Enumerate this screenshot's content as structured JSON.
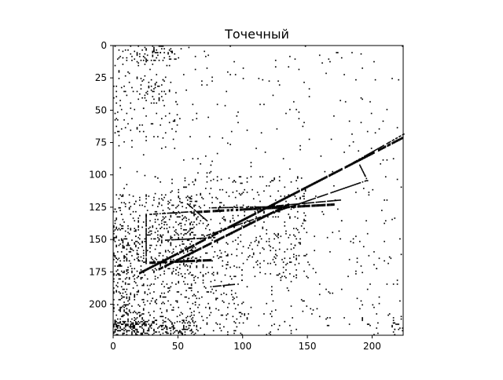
{
  "chart_data": {
    "type": "heatmap",
    "title": "Точечный",
    "xlabel": "",
    "ylabel": "",
    "x_range": [
      0,
      224
    ],
    "y_range": [
      0,
      224
    ],
    "y_inverted": true,
    "grid": false,
    "colors": {
      "ink": "#000000",
      "background": "#ffffff"
    },
    "x_ticks": [
      {
        "value": 0,
        "label": "0"
      },
      {
        "value": 50,
        "label": "50"
      },
      {
        "value": 100,
        "label": "100"
      },
      {
        "value": 150,
        "label": "150"
      },
      {
        "value": 200,
        "label": "200"
      }
    ],
    "y_ticks": [
      {
        "value": 0,
        "label": "0"
      },
      {
        "value": 25,
        "label": "25"
      },
      {
        "value": 50,
        "label": "50"
      },
      {
        "value": 75,
        "label": "75"
      },
      {
        "value": 100,
        "label": "100"
      },
      {
        "value": 125,
        "label": "125"
      },
      {
        "value": 150,
        "label": "150"
      },
      {
        "value": 175,
        "label": "175"
      },
      {
        "value": 200,
        "label": "200"
      }
    ],
    "lines": [
      {
        "from": [
          20,
          175
        ],
        "to": [
          224,
          70
        ],
        "width": 2
      },
      {
        "from": [
          35,
          172
        ],
        "to": [
          135,
          122
        ],
        "width": 2
      },
      {
        "from": [
          28,
          130
        ],
        "to": [
          60,
          128
        ],
        "width": 1
      },
      {
        "from": [
          60,
          128
        ],
        "to": [
          170,
          122
        ],
        "width": 2
      },
      {
        "from": [
          120,
          124
        ],
        "to": [
          175,
          119
        ],
        "width": 1
      },
      {
        "from": [
          70,
          147
        ],
        "to": [
          195,
          104
        ],
        "width": 1
      },
      {
        "from": [
          28,
          167
        ],
        "to": [
          75,
          165
        ],
        "width": 2
      },
      {
        "from": [
          190,
          92
        ],
        "to": [
          196,
          104
        ],
        "width": 1
      },
      {
        "from": [
          57,
          122
        ],
        "to": [
          72,
          135
        ],
        "width": 1
      },
      {
        "from": [
          25,
          130
        ],
        "to": [
          25,
          168
        ],
        "width": 1
      },
      {
        "from": [
          40,
          150
        ],
        "to": [
          78,
          148
        ],
        "width": 1
      },
      {
        "from": [
          75,
          186
        ],
        "to": [
          95,
          184
        ],
        "width": 1
      },
      {
        "from": [
          75,
          125
        ],
        "to": [
          130,
          124
        ],
        "width": 1
      },
      {
        "from": [
          185,
          90
        ],
        "to": [
          224,
          68
        ],
        "width": 1
      }
    ],
    "clusters": [
      {
        "x": [
          0,
          224
        ],
        "y": [
          0,
          224
        ],
        "n": 420
      },
      {
        "x": [
          0,
          65
        ],
        "y": [
          115,
          224
        ],
        "n": 620
      },
      {
        "x": [
          0,
          65
        ],
        "y": [
          212,
          224
        ],
        "n": 180
      },
      {
        "x": [
          30,
          150
        ],
        "y": [
          100,
          180
        ],
        "n": 420
      },
      {
        "x": [
          0,
          50
        ],
        "y": [
          0,
          75
        ],
        "n": 110
      },
      {
        "x": [
          14,
          48
        ],
        "y": [
          0,
          12
        ],
        "n": 60
      },
      {
        "x": [
          20,
          40
        ],
        "y": [
          25,
          45
        ],
        "n": 30
      },
      {
        "x": [
          60,
          100
        ],
        "y": [
          170,
          224
        ],
        "n": 120
      },
      {
        "x": [
          120,
          170
        ],
        "y": [
          160,
          224
        ],
        "n": 40
      },
      {
        "x": [
          0,
          20
        ],
        "y": [
          140,
          224
        ],
        "n": 160
      },
      {
        "x": [
          180,
          224
        ],
        "y": [
          150,
          224
        ],
        "n": 30
      },
      {
        "x": [
          215,
          224
        ],
        "y": [
          210,
          224
        ],
        "n": 15
      }
    ]
  }
}
